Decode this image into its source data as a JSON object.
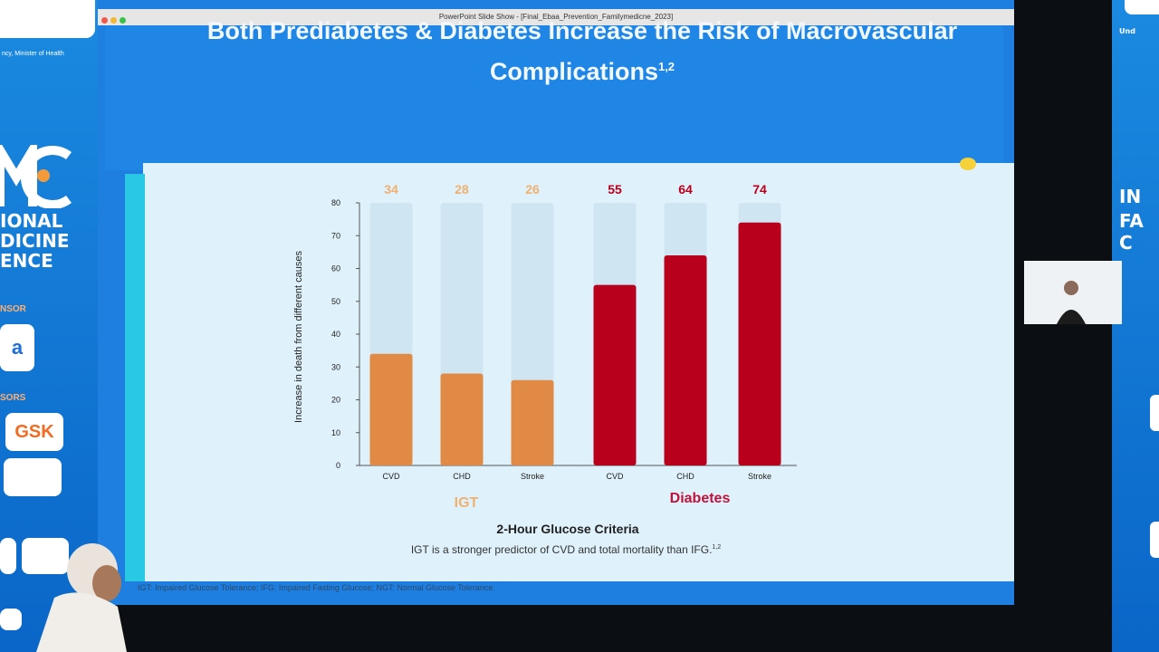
{
  "window": {
    "title": "PowerPoint Slide Show - [Final_Ebaa_Prevention_Familymedicne_2023]"
  },
  "banner_left": {
    "ministry": "ncy, Minister of Health",
    "line_ional": "IONAL",
    "line_dicine": "DICINE",
    "line_ence": "ENCE",
    "section_sor": "NSOR",
    "section_sors": "SORS",
    "sponsor_gsk": "GSK"
  },
  "banner_right": {
    "line1": "Und",
    "line2": "IN",
    "line3": "FA",
    "line4": "C"
  },
  "slide": {
    "title_line1": "Both Prediabetes & Diabetes Increase the Risk of Macrovascular",
    "title_line2": "Complications",
    "title_sup": "1,2",
    "subtitle": "2-Hour Glucose Criteria",
    "note": "IGT is a stronger predictor of CVD and total mortality than IFG.",
    "note_sup": "1,2",
    "footer": "IGT: Impaired Glucose Tolerance; IFG: Impaired Fasting Glucose; NGT: Normal Glucose Tolerance."
  },
  "colors": {
    "igt": "#e08a45",
    "diabetes": "#b8001c",
    "track": "#cfe6f2",
    "igt_label": "#f0b070",
    "diabetes_label": "#c0123a"
  },
  "chart_data": {
    "type": "bar",
    "ylabel": "Increase in death from different causes",
    "ylim": [
      0,
      80
    ],
    "yticks": [
      0,
      10,
      20,
      30,
      40,
      50,
      60,
      70,
      80
    ],
    "groups": [
      {
        "name": "IGT",
        "categories": [
          "CVD",
          "CHD",
          "Stroke"
        ],
        "values": [
          34,
          28,
          26
        ]
      },
      {
        "name": "Diabetes",
        "categories": [
          "CVD",
          "CHD",
          "Stroke"
        ],
        "values": [
          55,
          64,
          74
        ]
      }
    ],
    "value_labels": [
      "34",
      "28",
      "26",
      "55",
      "64",
      "74"
    ],
    "xlabel": "2-Hour Glucose Criteria"
  }
}
